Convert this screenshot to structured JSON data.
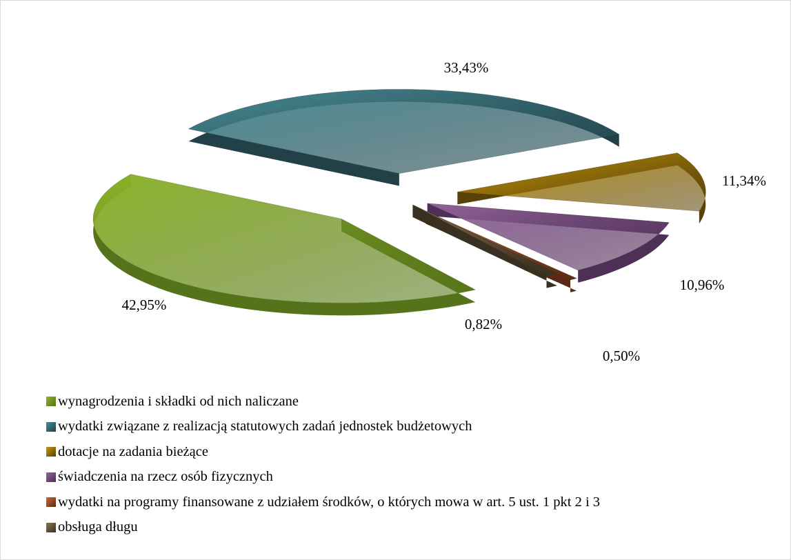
{
  "chart_data": {
    "type": "pie",
    "title": "",
    "legend_position": "bottom-left",
    "series": [
      {
        "name": "wynagrodzenia i składki od nich naliczane",
        "value": 42.95,
        "label": "42,95%",
        "color": "#8db42a",
        "dark": "#55731a"
      },
      {
        "name": "wydatki związane z realizacją statutowych zadań jednostek budżetowych",
        "value": 33.43,
        "label": "33,43%",
        "color": "#4a8e98",
        "dark": "#214047"
      },
      {
        "name": "dotacje na zadania bieżące",
        "value": 11.34,
        "label": "11,34%",
        "color": "#c99a09",
        "dark": "#584209"
      },
      {
        "name": "świadczenia na rzecz osób fizycznych",
        "value": 10.96,
        "label": "10,96%",
        "color": "#93649a",
        "dark": "#4e2f55"
      },
      {
        "name": "wydatki na programy finansowane z udziałem środków, o których mowa w art. 5 ust. 1 pkt 2 i 3",
        "value": 0.5,
        "label": "0,50%",
        "color": "#cc6a32",
        "dark": "#5b2a16"
      },
      {
        "name": "obsługa długu",
        "value": 0.82,
        "label": "0,82%",
        "color": "#8a7558",
        "dark": "#3a3020"
      }
    ]
  }
}
